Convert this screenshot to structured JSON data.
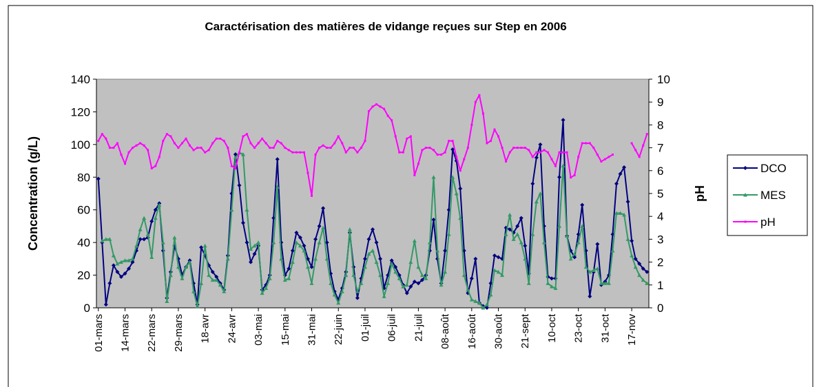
{
  "chart_data": {
    "type": "line",
    "title": "Caractérisation des matières de vidange reçues sur Step en 2006",
    "y_label": "Concentration (g/L)",
    "y2_label": "pH",
    "categories": [
      "01-mars",
      null,
      null,
      null,
      null,
      null,
      null,
      "14-mars",
      null,
      null,
      null,
      null,
      null,
      null,
      "22-mars",
      null,
      null,
      null,
      null,
      null,
      null,
      "29-mars",
      null,
      null,
      null,
      null,
      null,
      null,
      "18-avr",
      null,
      null,
      null,
      null,
      null,
      null,
      "24-avr",
      null,
      null,
      null,
      null,
      null,
      null,
      "03-mai",
      null,
      null,
      null,
      null,
      null,
      null,
      "15-mai",
      null,
      null,
      null,
      null,
      null,
      null,
      "31-mai",
      null,
      null,
      null,
      null,
      null,
      null,
      "22-juin",
      null,
      null,
      null,
      null,
      null,
      null,
      "01-juil",
      null,
      null,
      null,
      null,
      null,
      null,
      "06-juil",
      null,
      null,
      null,
      null,
      null,
      null,
      "21-juil",
      null,
      null,
      null,
      null,
      null,
      null,
      "08-août",
      null,
      null,
      null,
      null,
      null,
      null,
      "16-août",
      null,
      null,
      null,
      null,
      null,
      null,
      "30-août",
      null,
      null,
      null,
      null,
      null,
      null,
      "21-sept",
      null,
      null,
      null,
      null,
      null,
      null,
      "10-oct",
      null,
      null,
      null,
      null,
      null,
      null,
      "23-oct",
      null,
      null,
      null,
      null,
      null,
      null,
      "31-oct",
      null,
      null,
      null,
      null,
      null,
      null,
      "17-nov",
      null,
      null,
      null,
      null
    ],
    "series": [
      {
        "name": "DCO",
        "color": "#000080",
        "marker": "diamond",
        "values": [
          79,
          40,
          2,
          15,
          26,
          22,
          19,
          21,
          24,
          28,
          35,
          42,
          42,
          43,
          53,
          60,
          64,
          35,
          6,
          22,
          38,
          30,
          20,
          25,
          29,
          15,
          2,
          37,
          32,
          26,
          22,
          19,
          15,
          11,
          32,
          70,
          94,
          75,
          52,
          40,
          28,
          33,
          38,
          11,
          14,
          20,
          55,
          91,
          40,
          20,
          24,
          35,
          46,
          43,
          38,
          30,
          25,
          42,
          50,
          61,
          40,
          21,
          10,
          5,
          12,
          22,
          46,
          25,
          6,
          18,
          30,
          42,
          48,
          40,
          30,
          12,
          20,
          29,
          25,
          20,
          14,
          9,
          13,
          16,
          15,
          17,
          20,
          35,
          54,
          30,
          15,
          35,
          60,
          97,
          90,
          73,
          35,
          9,
          18,
          30,
          3,
          1,
          0,
          15,
          32,
          31,
          30,
          49,
          48,
          46,
          50,
          55,
          38,
          21,
          76,
          92,
          100,
          50,
          19,
          18,
          18,
          80,
          115,
          44,
          35,
          31,
          45,
          63,
          35,
          7,
          22,
          39,
          14,
          16,
          20,
          45,
          76,
          82,
          86,
          65,
          41,
          30,
          27,
          24,
          22
        ]
      },
      {
        "name": "MES",
        "color": "#339966",
        "marker": "triangle",
        "values": [
          null,
          41,
          42,
          42,
          32,
          27,
          28,
          29,
          29,
          30,
          38,
          48,
          55,
          45,
          31,
          55,
          63,
          40,
          4,
          20,
          43,
          25,
          18,
          25,
          28,
          10,
          1,
          15,
          38,
          20,
          17,
          17,
          14,
          10,
          30,
          60,
          92,
          95,
          94,
          60,
          36,
          38,
          40,
          9,
          12,
          18,
          40,
          74,
          30,
          17,
          18,
          28,
          40,
          38,
          35,
          25,
          15,
          30,
          40,
          49,
          30,
          15,
          8,
          3,
          10,
          20,
          48,
          20,
          10,
          15,
          25,
          33,
          35,
          28,
          20,
          7,
          15,
          27,
          22,
          18,
          13,
          14,
          28,
          41,
          25,
          20,
          18,
          40,
          80,
          35,
          14,
          22,
          45,
          80,
          70,
          55,
          20,
          11,
          5,
          4,
          3,
          0,
          2,
          8,
          23,
          22,
          20,
          45,
          57,
          42,
          45,
          40,
          30,
          15,
          45,
          65,
          70,
          40,
          15,
          13,
          12,
          50,
          87,
          44,
          30,
          33,
          40,
          50,
          25,
          22,
          23,
          24,
          15,
          15,
          15,
          35,
          58,
          58,
          57,
          42,
          32,
          25,
          20,
          17,
          15
        ]
      },
      {
        "name": "pH",
        "color": "#ff00ff",
        "marker": "square",
        "axis": "y2",
        "values": [
          7.3,
          7.6,
          7.4,
          7.0,
          7.0,
          7.2,
          6.7,
          6.3,
          6.8,
          7.0,
          7.1,
          7.2,
          7.1,
          6.9,
          6.1,
          6.2,
          6.6,
          7.3,
          7.6,
          7.5,
          7.2,
          7.0,
          7.2,
          7.4,
          7.1,
          6.9,
          7.0,
          7.0,
          6.8,
          6.9,
          7.2,
          7.4,
          7.4,
          7.3,
          7.0,
          6.2,
          6.1,
          6.8,
          7.5,
          7.6,
          7.2,
          7.0,
          7.2,
          7.4,
          7.2,
          7.0,
          7.0,
          7.3,
          7.2,
          7.0,
          6.9,
          6.8,
          6.8,
          6.8,
          6.8,
          5.9,
          4.9,
          6.7,
          7.0,
          7.1,
          7.0,
          7.0,
          7.2,
          7.5,
          7.2,
          6.8,
          7.0,
          7.0,
          6.8,
          7.0,
          7.3,
          8.6,
          8.8,
          8.9,
          8.8,
          8.7,
          8.4,
          8.2,
          7.5,
          6.8,
          6.8,
          7.4,
          7.5,
          5.8,
          6.3,
          6.9,
          7.0,
          7.0,
          6.9,
          6.7,
          6.7,
          6.8,
          7.3,
          7.3,
          6.6,
          6.0,
          6.5,
          7.0,
          8.0,
          9.0,
          9.3,
          8.5,
          7.2,
          7.3,
          7.8,
          7.5,
          7.0,
          6.4,
          6.8,
          7.0,
          7.0,
          7.0,
          7.0,
          6.9,
          6.6,
          6.8,
          6.8,
          6.9,
          6.8,
          6.5,
          6.2,
          6.8,
          6.8,
          6.8,
          5.7,
          5.8,
          6.6,
          7.2,
          7.2,
          7.2,
          7.0,
          6.7,
          6.4,
          6.5,
          6.6,
          6.7,
          null,
          null,
          null,
          null,
          7.2,
          6.9,
          6.6,
          7.1,
          7.6
        ]
      }
    ],
    "ylim": [
      0,
      140
    ],
    "yticks": [
      0,
      20,
      40,
      60,
      80,
      100,
      120,
      140
    ],
    "y2lim": [
      0,
      10
    ],
    "y2ticks": [
      0,
      1,
      2,
      3,
      4,
      5,
      6,
      7,
      8,
      9,
      10
    ],
    "grid": false,
    "legend": "right",
    "plot_background": "#c0c0c0"
  }
}
